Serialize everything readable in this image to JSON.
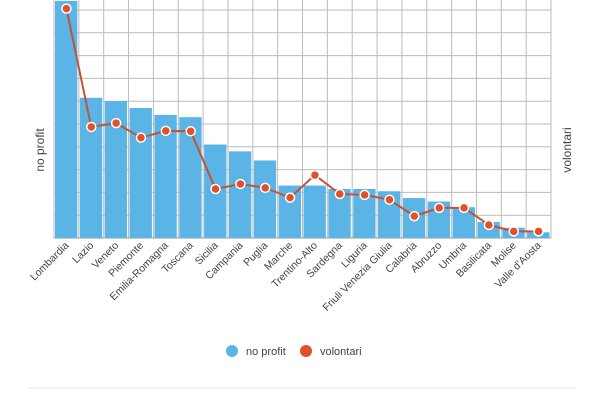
{
  "chart_data": {
    "type": "bar",
    "title": "",
    "xlabel": "",
    "ylabel": "no profit",
    "y2label": "volontari",
    "grid": true,
    "legend_position": "bottom",
    "ylim": [
      0,
      10.4
    ],
    "categories": [
      "Lombardia",
      "Lazio",
      "Veneto",
      "Piemonte",
      "Emilia-Romagna",
      "Toscana",
      "Sicilia",
      "Campania",
      "Puglia",
      "Marche",
      "Trentino-Alto",
      "Sardegna",
      "Liguria",
      "Friuli Venezia Giulia",
      "Calabria",
      "Abruzzo",
      "Umbria",
      "Basilicata",
      "Molise",
      "Valle d'Aosta"
    ],
    "series": [
      {
        "name": "no profit",
        "type": "bar",
        "color": "#5ab4e5",
        "values": [
          10.4,
          6.15,
          6.0,
          5.7,
          5.4,
          5.3,
          4.1,
          3.8,
          3.4,
          2.3,
          2.3,
          2.15,
          2.15,
          2.05,
          1.75,
          1.6,
          1.35,
          0.7,
          0.45,
          0.25
        ]
      },
      {
        "name": "volontari",
        "type": "line",
        "color": "#e0502a",
        "values": [
          10.06,
          4.87,
          5.04,
          4.4,
          4.7,
          4.68,
          2.15,
          2.37,
          2.2,
          1.77,
          2.76,
          1.93,
          1.89,
          1.68,
          0.96,
          1.32,
          1.32,
          0.57,
          0.29,
          0.29
        ]
      }
    ]
  }
}
